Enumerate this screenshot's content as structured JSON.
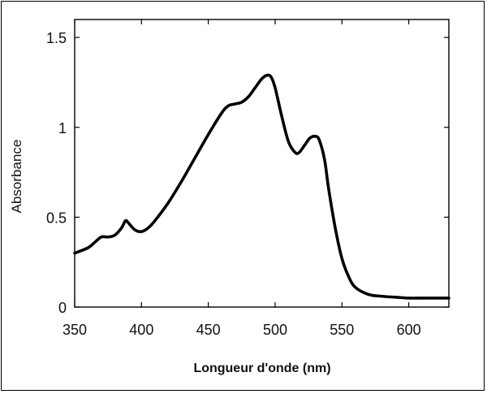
{
  "chart_data": {
    "type": "line",
    "title": "",
    "xlabel": "Longueur d'onde (nm)",
    "ylabel": "Absorbance",
    "xlim": [
      350,
      630
    ],
    "ylim": [
      0,
      1.6
    ],
    "x_ticks": [
      {
        "value": 350,
        "label": "350"
      },
      {
        "value": 400,
        "label": "400"
      },
      {
        "value": 450,
        "label": "450"
      },
      {
        "value": 500,
        "label": "500"
      },
      {
        "value": 550,
        "label": "550"
      },
      {
        "value": 600,
        "label": "600"
      }
    ],
    "y_ticks": [
      {
        "value": 0,
        "label": "0"
      },
      {
        "value": 0.5,
        "label": "0.5"
      },
      {
        "value": 1,
        "label": "1"
      },
      {
        "value": 1.5,
        "label": "1.5"
      }
    ],
    "grid": false,
    "legend": "none",
    "series": [
      {
        "color": "#000000",
        "x": [
          350,
          360,
          365,
          370,
          375,
          380,
          385,
          388,
          390,
          395,
          400,
          405,
          410,
          420,
          430,
          440,
          450,
          460,
          465,
          470,
          475,
          480,
          485,
          490,
          494,
          497,
          500,
          505,
          510,
          515,
          518,
          522,
          526,
          530,
          533,
          537,
          540,
          545,
          550,
          555,
          560,
          570,
          580,
          590,
          600,
          610,
          620,
          630
        ],
        "y": [
          0.3,
          0.33,
          0.36,
          0.39,
          0.39,
          0.4,
          0.44,
          0.48,
          0.47,
          0.43,
          0.42,
          0.44,
          0.48,
          0.58,
          0.7,
          0.83,
          0.96,
          1.08,
          1.12,
          1.13,
          1.14,
          1.17,
          1.22,
          1.27,
          1.29,
          1.28,
          1.22,
          1.06,
          0.92,
          0.86,
          0.86,
          0.9,
          0.94,
          0.95,
          0.93,
          0.82,
          0.66,
          0.44,
          0.27,
          0.17,
          0.11,
          0.07,
          0.06,
          0.055,
          0.05,
          0.05,
          0.05,
          0.05
        ]
      }
    ]
  }
}
